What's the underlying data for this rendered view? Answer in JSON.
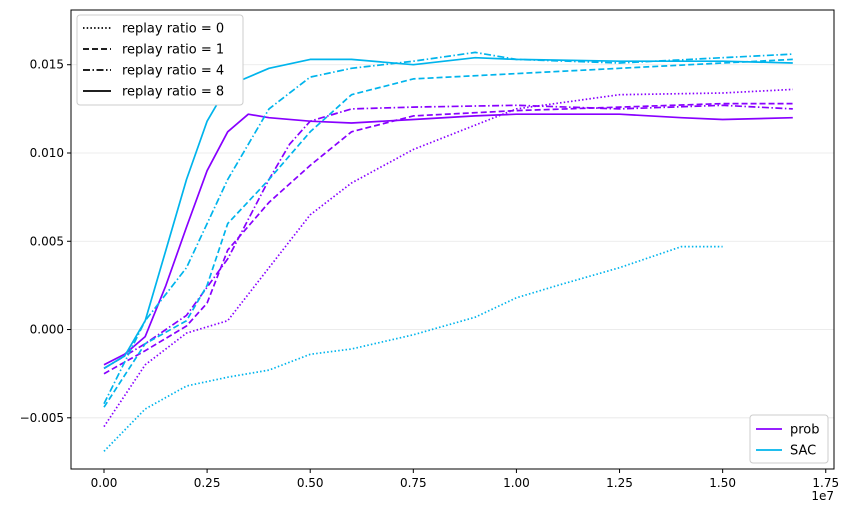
{
  "chart_data": {
    "type": "line",
    "title": "",
    "xlabel": "",
    "ylabel": "",
    "x_offset_label": "1e7",
    "xlim": [
      -0.08,
      1.77
    ],
    "ylim": [
      -0.0079,
      0.0181
    ],
    "x_ticks": [
      0.0,
      0.25,
      0.5,
      0.75,
      1.0,
      1.25,
      1.5,
      1.75
    ],
    "x_tick_labels": [
      "0.00",
      "0.25",
      "0.50",
      "0.75",
      "1.00",
      "1.25",
      "1.50",
      "1.75"
    ],
    "y_ticks": [
      -0.005,
      0.0,
      0.005,
      0.01,
      0.015
    ],
    "y_tick_labels": [
      "−0.005",
      "0.000",
      "0.005",
      "0.010",
      "0.015"
    ],
    "grid": "horizontal",
    "legend_linestyle": {
      "placement": "top-left",
      "entries": [
        {
          "label": "replay ratio = 0",
          "dash": "dotted"
        },
        {
          "label": "replay ratio = 1",
          "dash": "dashed"
        },
        {
          "label": "replay ratio = 4",
          "dash": "dashdot"
        },
        {
          "label": "replay ratio = 8",
          "dash": "solid"
        }
      ]
    },
    "legend_method": {
      "placement": "bottom-right",
      "entries": [
        {
          "label": "prob",
          "color": "#8800ff"
        },
        {
          "label": "SAC",
          "color": "#00b4ec"
        }
      ]
    },
    "series": [
      {
        "method": "prob",
        "replay_ratio": 8,
        "color": "#8800ff",
        "dash": "solid",
        "x": [
          0.0,
          0.05,
          0.1,
          0.15,
          0.2,
          0.25,
          0.3,
          0.35,
          0.4,
          0.5,
          0.6,
          0.75,
          0.9,
          1.0,
          1.25,
          1.4,
          1.5,
          1.67
        ],
        "y": [
          -0.002,
          -0.0014,
          -0.0004,
          0.0025,
          0.0058,
          0.009,
          0.0112,
          0.0122,
          0.012,
          0.0118,
          0.0117,
          0.0119,
          0.0121,
          0.0122,
          0.0122,
          0.012,
          0.0119,
          0.012
        ]
      },
      {
        "method": "prob",
        "replay_ratio": 4,
        "color": "#8800ff",
        "dash": "dashdot",
        "x": [
          0.0,
          0.1,
          0.2,
          0.3,
          0.4,
          0.45,
          0.5,
          0.6,
          0.75,
          1.0,
          1.25,
          1.5,
          1.67
        ],
        "y": [
          -0.0022,
          -0.0008,
          0.0008,
          0.004,
          0.0085,
          0.0105,
          0.0118,
          0.0125,
          0.0126,
          0.0127,
          0.0125,
          0.0127,
          0.0125
        ]
      },
      {
        "method": "prob",
        "replay_ratio": 1,
        "color": "#8800ff",
        "dash": "dashed",
        "x": [
          0.0,
          0.1,
          0.2,
          0.25,
          0.3,
          0.4,
          0.5,
          0.6,
          0.75,
          1.0,
          1.25,
          1.5,
          1.67
        ],
        "y": [
          -0.0025,
          -0.0012,
          0.0002,
          0.0015,
          0.0045,
          0.0072,
          0.0093,
          0.0112,
          0.0121,
          0.0124,
          0.0126,
          0.0128,
          0.0128
        ]
      },
      {
        "method": "prob",
        "replay_ratio": 0,
        "color": "#8800ff",
        "dash": "dotted",
        "x": [
          0.0,
          0.1,
          0.2,
          0.3,
          0.4,
          0.5,
          0.6,
          0.75,
          1.0,
          1.25,
          1.5,
          1.67
        ],
        "y": [
          -0.0055,
          -0.002,
          -0.0002,
          0.0005,
          0.0035,
          0.0065,
          0.0083,
          0.0102,
          0.0125,
          0.0133,
          0.0134,
          0.0136
        ]
      },
      {
        "method": "SAC",
        "replay_ratio": 8,
        "color": "#00b4ec",
        "dash": "solid",
        "x": [
          0.0,
          0.05,
          0.1,
          0.15,
          0.2,
          0.25,
          0.3,
          0.4,
          0.5,
          0.6,
          0.75,
          0.9,
          1.0,
          1.25,
          1.5,
          1.67
        ],
        "y": [
          -0.0022,
          -0.0015,
          0.0005,
          0.0045,
          0.0085,
          0.0118,
          0.0138,
          0.0148,
          0.0153,
          0.0153,
          0.015,
          0.0154,
          0.0153,
          0.0152,
          0.0152,
          0.0151
        ]
      },
      {
        "method": "SAC",
        "replay_ratio": 4,
        "color": "#00b4ec",
        "dash": "dashdot",
        "x": [
          0.0,
          0.1,
          0.2,
          0.3,
          0.4,
          0.5,
          0.6,
          0.75,
          0.9,
          1.0,
          1.25,
          1.5,
          1.67
        ],
        "y": [
          -0.0042,
          0.0005,
          0.0035,
          0.0085,
          0.0125,
          0.0143,
          0.0148,
          0.0152,
          0.0157,
          0.0153,
          0.0151,
          0.0154,
          0.0156
        ]
      },
      {
        "method": "SAC",
        "replay_ratio": 1,
        "color": "#00b4ec",
        "dash": "dashed",
        "x": [
          0.0,
          0.1,
          0.2,
          0.25,
          0.3,
          0.4,
          0.5,
          0.6,
          0.75,
          1.0,
          1.25,
          1.5,
          1.67
        ],
        "y": [
          -0.0044,
          -0.0008,
          0.0005,
          0.0025,
          0.006,
          0.0085,
          0.0112,
          0.0133,
          0.0142,
          0.0145,
          0.0148,
          0.0151,
          0.0153
        ]
      },
      {
        "method": "SAC",
        "replay_ratio": 0,
        "color": "#00b4ec",
        "dash": "dotted",
        "x": [
          0.0,
          0.1,
          0.2,
          0.3,
          0.4,
          0.5,
          0.6,
          0.75,
          0.9,
          1.0,
          1.1,
          1.25,
          1.4,
          1.5
        ],
        "y": [
          -0.0069,
          -0.0045,
          -0.0032,
          -0.0027,
          -0.0023,
          -0.0014,
          -0.0011,
          -0.0003,
          0.0007,
          0.0018,
          0.0025,
          0.0035,
          0.0047,
          0.0047
        ]
      }
    ]
  }
}
